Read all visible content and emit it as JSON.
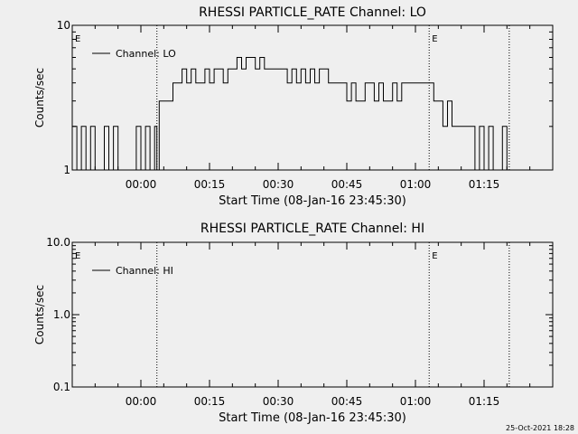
{
  "footer": {
    "stamp": "25-Oct-2021 18:28"
  },
  "chart_data": [
    {
      "type": "line",
      "title": "RHESSI PARTICLE_RATE Channel: LO",
      "xlabel": "Start Time (08-Jan-16 23:45:30)",
      "ylabel": "Counts/sec",
      "yscale": "log",
      "ylim": [
        1,
        10
      ],
      "ytick_labels": [
        "1",
        "10"
      ],
      "xlim_minutes": [
        -15,
        90
      ],
      "xtick_labels": [
        "00:00",
        "00:15",
        "00:30",
        "00:45",
        "01:00",
        "01:15"
      ],
      "xtick_minutes": [
        0,
        15,
        30,
        45,
        60,
        75
      ],
      "dotted_lines_minutes": [
        3.5,
        63,
        80.5
      ],
      "flags": [
        "E",
        "E"
      ],
      "flag_minutes": [
        -15,
        63
      ],
      "legend_position": "top-left",
      "series": [
        {
          "name": "Channel: LO",
          "x": [
            -15,
            -14,
            -13,
            -12,
            -11,
            -10,
            -9,
            -8,
            -7,
            -6,
            -5,
            -4,
            -3,
            -2,
            -1,
            0,
            1,
            2,
            3,
            3.5,
            4,
            5,
            6,
            7,
            8,
            9,
            10,
            11,
            12,
            13,
            14,
            15,
            16,
            17,
            18,
            19,
            20,
            21,
            22,
            23,
            24,
            25,
            26,
            27,
            28,
            29,
            30,
            31,
            32,
            33,
            34,
            35,
            36,
            37,
            38,
            39,
            40,
            41,
            42,
            43,
            44,
            45,
            46,
            47,
            48,
            49,
            50,
            51,
            52,
            53,
            54,
            55,
            56,
            57,
            58,
            59,
            60,
            61,
            62,
            63,
            64,
            65,
            66,
            67,
            68,
            69,
            70,
            71,
            72,
            73,
            74,
            75,
            76,
            77,
            78,
            79,
            80,
            80.5
          ],
          "y": [
            2,
            1,
            2,
            1,
            2,
            1,
            1,
            2,
            1,
            2,
            1,
            1,
            1,
            1,
            2,
            1,
            2,
            1,
            2,
            1,
            3,
            3,
            3,
            4,
            4,
            5,
            4,
            5,
            4,
            4,
            5,
            4,
            5,
            5,
            4,
            5,
            5,
            6,
            5,
            6,
            6,
            5,
            6,
            5,
            5,
            5,
            5,
            5,
            4,
            5,
            4,
            5,
            4,
            5,
            4,
            5,
            5,
            4,
            4,
            4,
            4,
            3,
            4,
            3,
            3,
            4,
            4,
            3,
            4,
            3,
            3,
            4,
            3,
            4,
            4,
            4,
            4,
            4,
            4,
            4,
            3,
            3,
            2,
            3,
            2,
            2,
            2,
            2,
            2,
            1,
            2,
            1,
            2,
            1,
            1,
            2,
            1,
            1
          ]
        }
      ]
    },
    {
      "type": "line",
      "title": "RHESSI PARTICLE_RATE Channel: HI",
      "xlabel": "Start Time (08-Jan-16 23:45:30)",
      "ylabel": "Counts/sec",
      "yscale": "log",
      "ylim": [
        0.1,
        10
      ],
      "ytick_labels": [
        "0.1",
        "1.0",
        "10.0"
      ],
      "xlim_minutes": [
        -15,
        90
      ],
      "xtick_labels": [
        "00:00",
        "00:15",
        "00:30",
        "00:45",
        "01:00",
        "01:15"
      ],
      "xtick_minutes": [
        0,
        15,
        30,
        45,
        60,
        75
      ],
      "dotted_lines_minutes": [
        3.5,
        63,
        80.5
      ],
      "flags": [
        "E",
        "E"
      ],
      "flag_minutes": [
        -15,
        63
      ],
      "legend_position": "top-left",
      "series": [
        {
          "name": "Channel: HI",
          "x": [],
          "y": []
        }
      ]
    }
  ]
}
